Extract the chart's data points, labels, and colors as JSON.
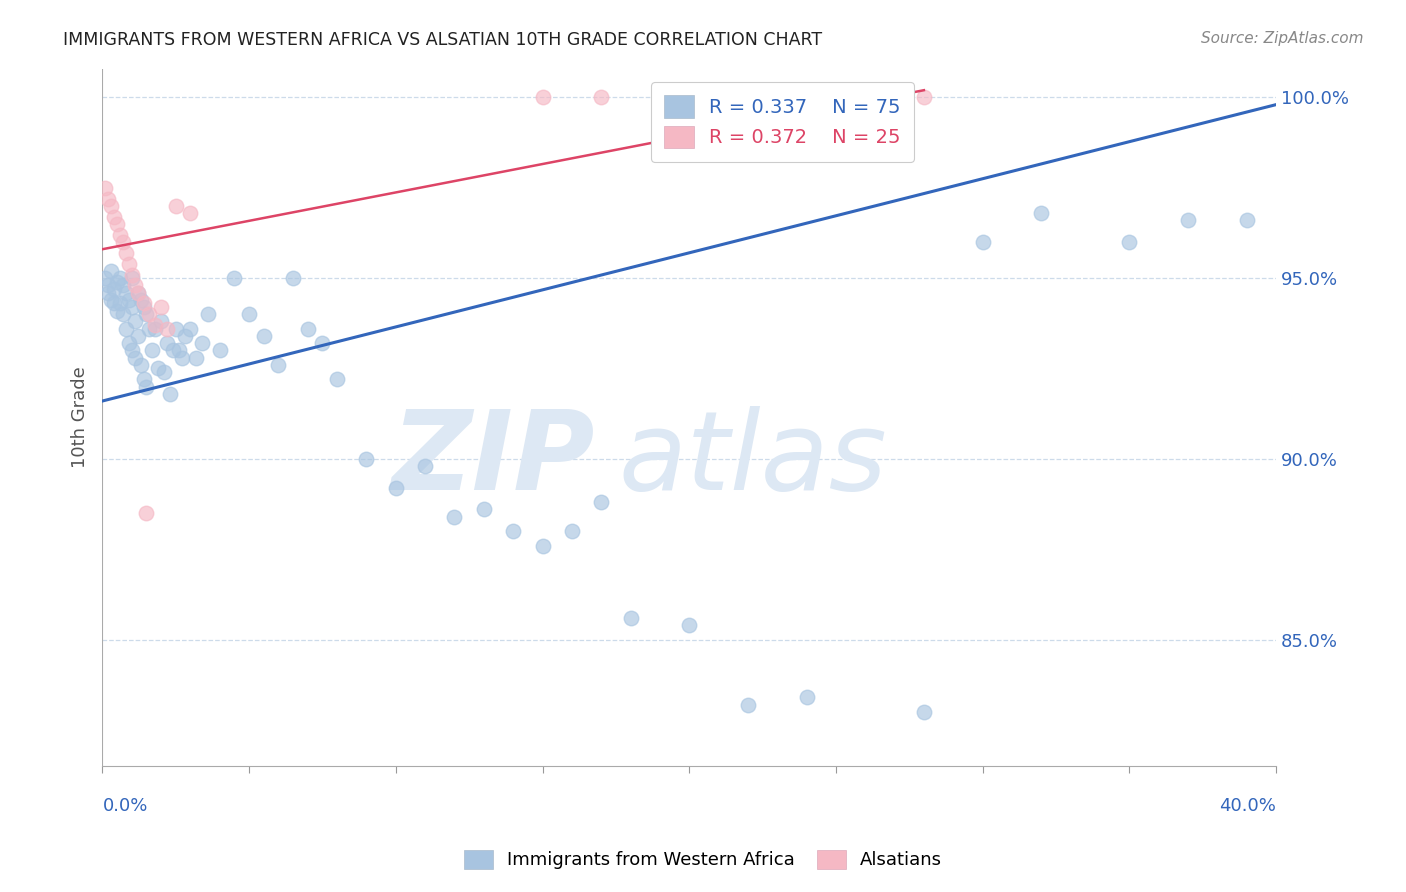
{
  "title": "IMMIGRANTS FROM WESTERN AFRICA VS ALSATIAN 10TH GRADE CORRELATION CHART",
  "source": "Source: ZipAtlas.com",
  "ylabel": "10th Grade",
  "y_tick_labels": [
    "85.0%",
    "90.0%",
    "95.0%",
    "100.0%"
  ],
  "y_tick_values": [
    0.85,
    0.9,
    0.95,
    1.0
  ],
  "x_range": [
    0.0,
    0.4
  ],
  "y_range": [
    0.815,
    1.008
  ],
  "legend_blue_R": "R = 0.337",
  "legend_blue_N": "N = 75",
  "legend_pink_R": "R = 0.372",
  "legend_pink_N": "N = 25",
  "blue_color": "#a8c4e0",
  "pink_color": "#f5b8c4",
  "trendline_blue": "#3366bb",
  "trendline_pink": "#dd4466",
  "watermark_zip": "ZIP",
  "watermark_atlas": "atlas",
  "watermark_color": "#dde8f4",
  "blue_x": [
    0.001,
    0.002,
    0.002,
    0.003,
    0.003,
    0.004,
    0.004,
    0.005,
    0.005,
    0.006,
    0.006,
    0.007,
    0.007,
    0.008,
    0.008,
    0.009,
    0.009,
    0.01,
    0.01,
    0.01,
    0.011,
    0.011,
    0.012,
    0.012,
    0.013,
    0.013,
    0.014,
    0.014,
    0.015,
    0.015,
    0.016,
    0.017,
    0.018,
    0.019,
    0.02,
    0.021,
    0.022,
    0.023,
    0.024,
    0.025,
    0.026,
    0.027,
    0.028,
    0.03,
    0.032,
    0.034,
    0.036,
    0.04,
    0.045,
    0.05,
    0.055,
    0.06,
    0.065,
    0.07,
    0.075,
    0.08,
    0.09,
    0.1,
    0.11,
    0.12,
    0.13,
    0.14,
    0.15,
    0.16,
    0.17,
    0.18,
    0.2,
    0.22,
    0.24,
    0.28,
    0.3,
    0.32,
    0.35,
    0.37,
    0.39
  ],
  "blue_y": [
    0.95,
    0.948,
    0.946,
    0.952,
    0.944,
    0.947,
    0.943,
    0.949,
    0.941,
    0.95,
    0.943,
    0.948,
    0.94,
    0.946,
    0.936,
    0.944,
    0.932,
    0.95,
    0.942,
    0.93,
    0.938,
    0.928,
    0.946,
    0.934,
    0.944,
    0.926,
    0.942,
    0.922,
    0.94,
    0.92,
    0.936,
    0.93,
    0.936,
    0.925,
    0.938,
    0.924,
    0.932,
    0.918,
    0.93,
    0.936,
    0.93,
    0.928,
    0.934,
    0.936,
    0.928,
    0.932,
    0.94,
    0.93,
    0.95,
    0.94,
    0.934,
    0.926,
    0.95,
    0.936,
    0.932,
    0.922,
    0.9,
    0.892,
    0.898,
    0.884,
    0.886,
    0.88,
    0.876,
    0.88,
    0.888,
    0.856,
    0.854,
    0.832,
    0.834,
    0.83,
    0.96,
    0.968,
    0.96,
    0.966,
    0.966
  ],
  "pink_x": [
    0.001,
    0.002,
    0.003,
    0.004,
    0.005,
    0.006,
    0.007,
    0.008,
    0.009,
    0.01,
    0.011,
    0.012,
    0.014,
    0.016,
    0.018,
    0.02,
    0.025,
    0.03,
    0.15,
    0.17,
    0.2,
    0.24,
    0.28,
    0.015,
    0.022
  ],
  "pink_y": [
    0.975,
    0.972,
    0.97,
    0.967,
    0.965,
    0.962,
    0.96,
    0.957,
    0.954,
    0.951,
    0.948,
    0.946,
    0.943,
    0.94,
    0.937,
    0.942,
    0.97,
    0.968,
    1.0,
    1.0,
    1.0,
    1.0,
    1.0,
    0.885,
    0.936
  ],
  "blue_trend_x": [
    0.0,
    0.4
  ],
  "blue_trend_y": [
    0.916,
    0.998
  ],
  "pink_trend_x": [
    0.0,
    0.28
  ],
  "pink_trend_y": [
    0.958,
    1.002
  ]
}
